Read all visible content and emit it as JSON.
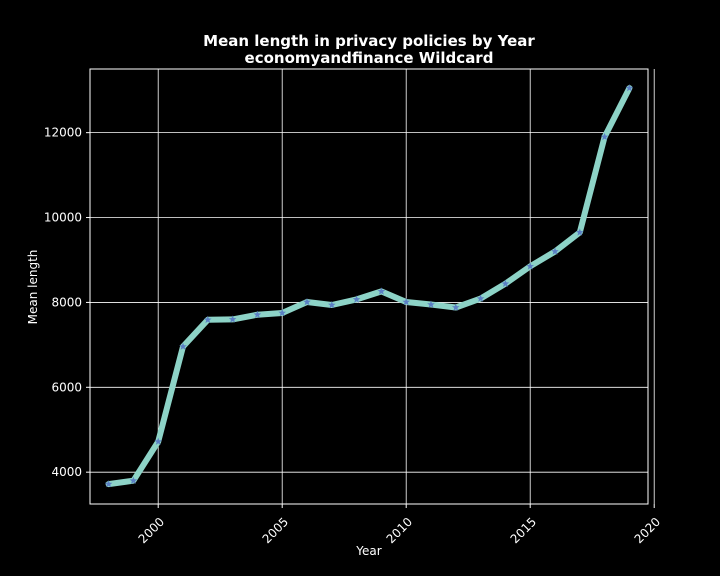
{
  "chart_data": {
    "type": "line",
    "title_line1": "Mean length in privacy policies by Year",
    "title_line2": "economyandfinance Wildcard",
    "xlabel": "Year",
    "ylabel": "Mean length",
    "xlim": [
      1997.25,
      2019.75
    ],
    "ylim": [
      3250,
      13500
    ],
    "x_ticks": [
      2000,
      2005,
      2010,
      2015,
      2020
    ],
    "y_ticks": [
      4000,
      6000,
      8000,
      10000,
      12000
    ],
    "grid": true,
    "background_color": "#000000",
    "line_color": "#8dd3c7",
    "marker_color": "#5b7fc4",
    "marker": "star",
    "series": [
      {
        "x": [
          1998,
          1999,
          2000,
          2001,
          2002,
          2003,
          2004,
          2005,
          2006,
          2007,
          2008,
          2009,
          2010,
          2011,
          2012,
          2013,
          2014,
          2015,
          2016,
          2017,
          2018,
          2019
        ],
        "values": [
          3720,
          3800,
          4720,
          6960,
          7590,
          7600,
          7710,
          7750,
          8010,
          7940,
          8070,
          8260,
          8010,
          7950,
          7880,
          8090,
          8440,
          8850,
          9200,
          9650,
          11900,
          13050
        ]
      }
    ]
  }
}
